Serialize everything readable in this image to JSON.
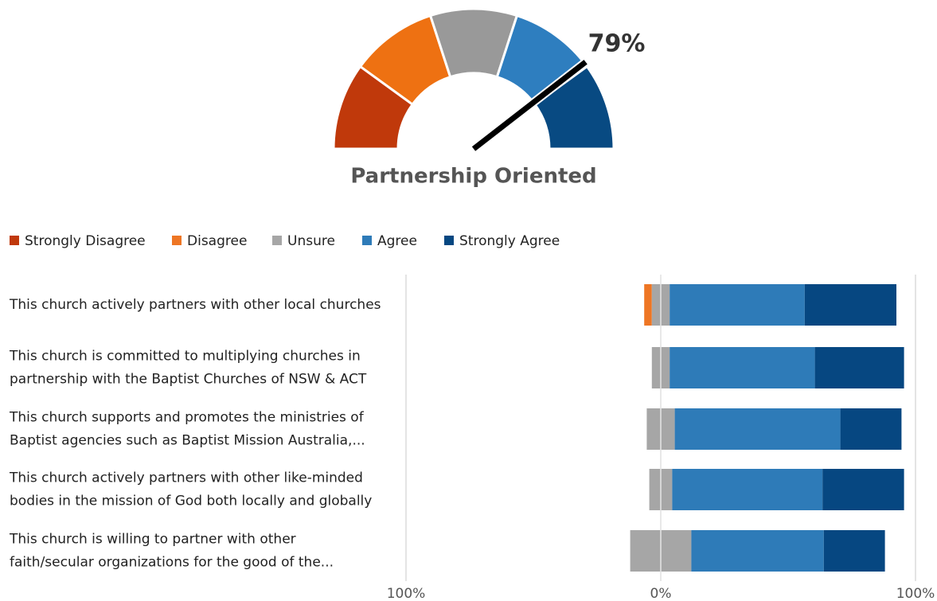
{
  "chart_data": [
    {
      "type": "gauge",
      "title": "Partnership Oriented",
      "value": 79,
      "value_label": "79%",
      "lim": [
        0,
        100
      ],
      "colors": [
        "#c0390b",
        "#ee7112",
        "#999999",
        "#2e7ebf",
        "#084a82"
      ]
    },
    {
      "type": "diverging_bar",
      "categories": [
        "This church actively partners with other local churches",
        "This church is committed to multiplying churches in\npartnership with the Baptist Churches of NSW & ACT",
        "This church supports and promotes the ministries of\nBaptist agencies such as Baptist Mission Australia,...",
        "This church actively partners with other like-minded\nbodies in the mission of God both locally and globally",
        "This church is willing to partner with other\nfaith/secular organizations for the good of the..."
      ],
      "series": [
        {
          "name": "Strongly Disagree",
          "color": "#c0390b",
          "values": [
            0,
            0,
            0,
            0,
            0
          ]
        },
        {
          "name": "Disagree",
          "color": "#ee7624",
          "values": [
            3,
            0,
            0,
            0,
            0
          ]
        },
        {
          "name": "Unsure",
          "color": "#a6a6a6",
          "values": [
            7,
            7,
            11,
            9,
            24
          ]
        },
        {
          "name": "Agree",
          "color": "#2e7bb8",
          "values": [
            53,
            57,
            65,
            59,
            52
          ]
        },
        {
          "name": "Strongly Agree",
          "color": "#064781",
          "values": [
            36,
            35,
            24,
            32,
            24
          ]
        }
      ],
      "xlim": [
        -100,
        100
      ],
      "xticks": [
        {
          "value": -100,
          "label": "100%"
        },
        {
          "value": 0,
          "label": "0%"
        },
        {
          "value": 100,
          "label": "100%"
        }
      ],
      "grid": true
    }
  ]
}
